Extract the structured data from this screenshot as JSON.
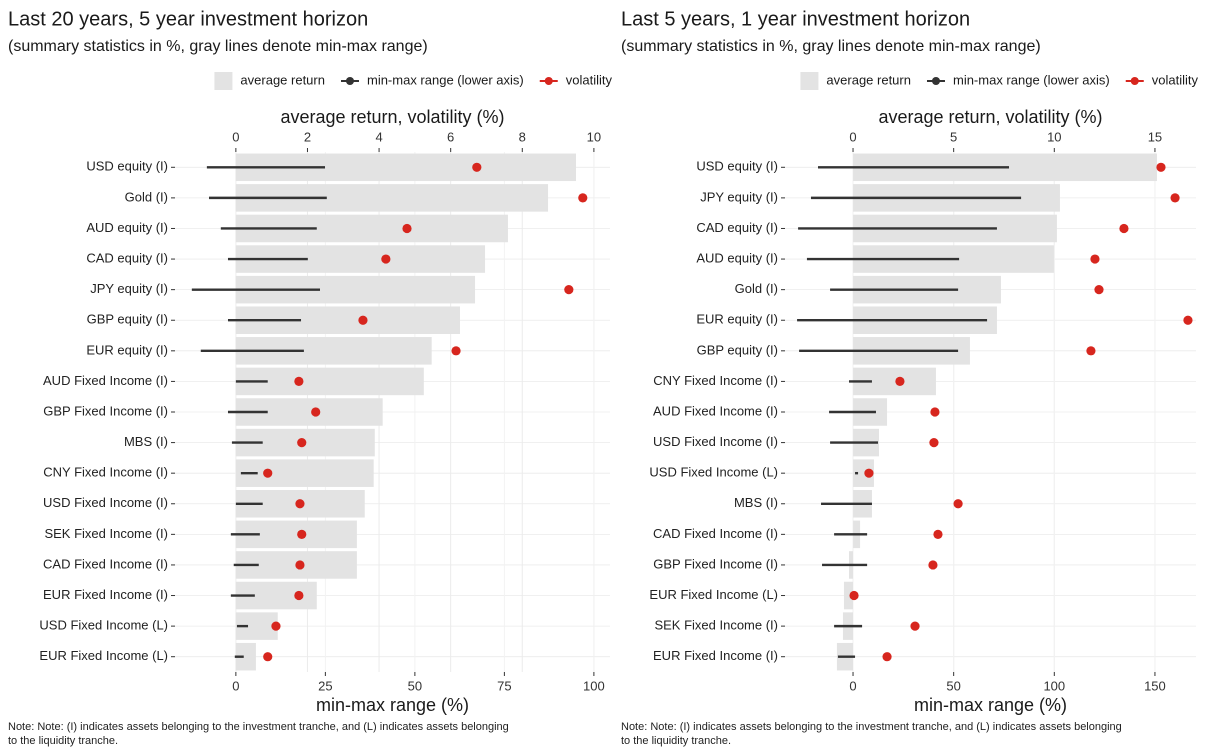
{
  "chart_data": [
    {
      "type": "bar",
      "title": "Last 20 years, 5 year investment horizon",
      "subtitle": "(summary statistics in %, gray lines denote min-max range)",
      "xlabel_top": "average return, volatility (%)",
      "xlabel_bottom": "min-max range (%)",
      "note": [
        "Note: Note: (I) indicates assets belonging to the investment tranche, and (L) indicates assets belonging",
        "to the liquidity tranche."
      ],
      "legend": "top",
      "grid": true,
      "categories": [
        "USD equity (I)",
        "Gold (I)",
        "AUD equity (I)",
        "CAD equity (I)",
        "JPY equity (I)",
        "GBP equity (I)",
        "EUR equity (I)",
        "AUD Fixed Income (I)",
        "GBP Fixed Income (I)",
        "MBS (I)",
        "CNY Fixed Income (I)",
        "USD Fixed Income (I)",
        "SEK Fixed Income (I)",
        "CAD Fixed Income (I)",
        "EUR Fixed Income (I)",
        "USD Fixed Income (L)",
        "EUR Fixed Income (L)"
      ],
      "xlim": [
        -1.7,
        10.45
      ],
      "xticks": [
        0,
        2,
        4,
        6,
        8,
        10
      ],
      "x2lim": [
        -17,
        104.5
      ],
      "x2ticks": [
        0,
        25,
        50,
        75,
        100
      ],
      "series": [
        {
          "name": "average return",
          "color": "#e3e3e3",
          "values": [
            9.5,
            8.72,
            7.6,
            6.96,
            6.68,
            6.26,
            5.47,
            5.25,
            4.1,
            3.88,
            3.85,
            3.6,
            3.38,
            3.38,
            2.26,
            1.17,
            0.56
          ]
        },
        {
          "name": "min-max range (lower axis)",
          "color": "#333333",
          "axis": "x2",
          "values": [
            [
              -8.1,
              24.9
            ],
            [
              -7.5,
              25.4
            ],
            [
              -4.2,
              22.6
            ],
            [
              -2.2,
              20.1
            ],
            [
              -12.3,
              23.5
            ],
            [
              -2.2,
              18.2
            ],
            [
              -9.8,
              19.0
            ],
            [
              0,
              8.9
            ],
            [
              -2.2,
              8.9
            ],
            [
              -1.1,
              7.5
            ],
            [
              1.4,
              6.1
            ],
            [
              0,
              7.5
            ],
            [
              -1.4,
              6.7
            ],
            [
              -0.6,
              6.4
            ],
            [
              -1.4,
              5.3
            ],
            [
              0.3,
              3.4
            ],
            [
              -0.3,
              2.2
            ]
          ]
        },
        {
          "name": "volatility",
          "color": "#d7261e",
          "values": [
            6.73,
            9.69,
            4.78,
            4.19,
            9.3,
            3.55,
            6.15,
            1.76,
            2.23,
            1.84,
            0.89,
            1.79,
            1.84,
            1.79,
            1.76,
            1.12,
            0.89
          ]
        }
      ]
    },
    {
      "type": "bar",
      "title": "Last 5 years, 1 year investment horizon",
      "subtitle": "(summary statistics in %, gray lines denote min-max range)",
      "xlabel_top": "average return, volatility (%)",
      "xlabel_bottom": "min-max range (%)",
      "note": [
        "Note: Note: (I) indicates assets belonging to the investment tranche, and (L) indicates assets belonging",
        "to the liquidity tranche."
      ],
      "legend": "top",
      "grid": true,
      "categories": [
        "USD equity (I)",
        "JPY equity (I)",
        "CAD equity (I)",
        "AUD equity (I)",
        "Gold (I)",
        "EUR equity (I)",
        "GBP equity (I)",
        "CNY Fixed Income (I)",
        "AUD Fixed Income (I)",
        "USD Fixed Income (I)",
        "USD Fixed Income (L)",
        "MBS (I)",
        "CAD Fixed Income (I)",
        "GBP Fixed Income (I)",
        "EUR Fixed Income (L)",
        "SEK Fixed Income (I)",
        "EUR Fixed Income (I)"
      ],
      "xlim": [
        -3.38,
        17.04
      ],
      "xticks": [
        0,
        5,
        10,
        15
      ],
      "x2lim": [
        -33.8,
        170.4
      ],
      "x2ticks": [
        0,
        50,
        100,
        150
      ],
      "series": [
        {
          "name": "average return",
          "color": "#e3e3e3",
          "values": [
            15.1,
            10.28,
            10.13,
            9.98,
            7.35,
            7.15,
            5.81,
            4.12,
            1.69,
            1.29,
            1.04,
            0.94,
            0.35,
            -0.2,
            -0.45,
            -0.5,
            -0.8
          ]
        },
        {
          "name": "min-max range (lower axis)",
          "color": "#333333",
          "axis": "x2",
          "values": [
            [
              -17.4,
              77.5
            ],
            [
              -20.9,
              83.5
            ],
            [
              -27.3,
              71.5
            ],
            [
              -22.9,
              52.7
            ],
            [
              -11.4,
              52.2
            ],
            [
              -27.8,
              66.6
            ],
            [
              -26.8,
              52.2
            ],
            [
              -2.0,
              9.4
            ],
            [
              -11.9,
              11.4
            ],
            [
              -11.4,
              12.4
            ],
            [
              1.0,
              2.5
            ],
            [
              -15.9,
              9.4
            ],
            [
              -9.4,
              7.0
            ],
            [
              -15.4,
              7.0
            ],
            [
              -0.3,
              0.3
            ],
            [
              -9.4,
              4.5
            ],
            [
              -7.5,
              1.0
            ]
          ]
        },
        {
          "name": "volatility",
          "color": "#d7261e",
          "values": [
            15.3,
            16.0,
            13.46,
            12.02,
            12.22,
            16.64,
            11.82,
            2.33,
            4.07,
            4.02,
            0.79,
            5.22,
            4.22,
            3.97,
            0.05,
            3.08,
            1.69
          ]
        }
      ]
    }
  ]
}
